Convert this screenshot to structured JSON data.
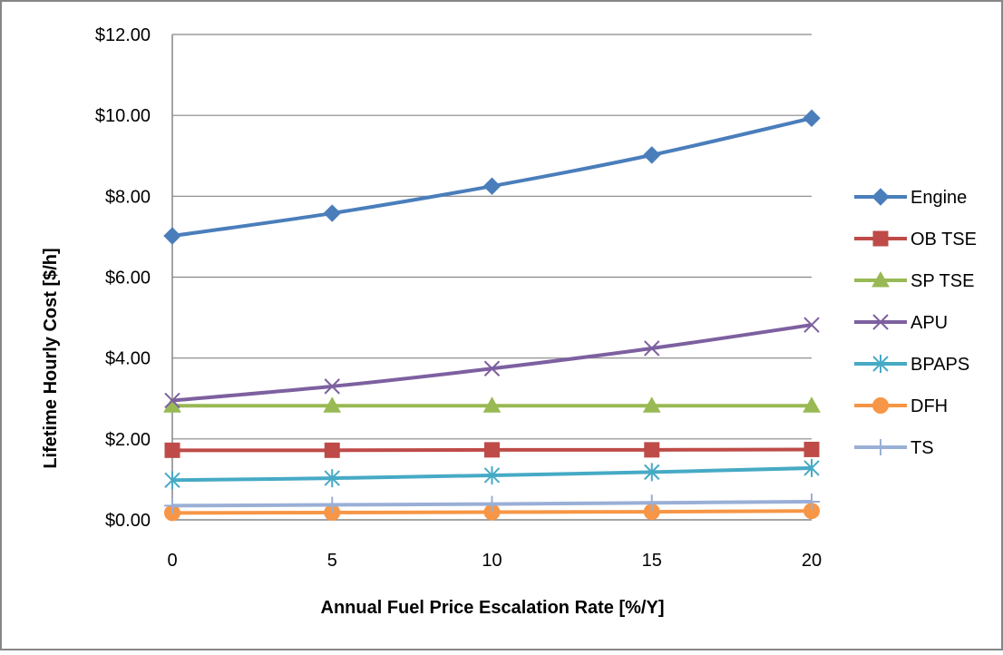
{
  "chart_data": {
    "type": "line",
    "title": "",
    "xlabel": "Annual Fuel Price Escalation Rate [%/Y]",
    "ylabel": "Lifetime Hourly Cost [$/h]",
    "x": [
      0,
      5,
      10,
      15,
      20
    ],
    "x_tick_labels": [
      "0",
      "5",
      "10",
      "15",
      "20"
    ],
    "ylim": [
      0,
      12
    ],
    "y_ticks": [
      0,
      2,
      4,
      6,
      8,
      10,
      12
    ],
    "y_tick_labels": [
      "$0.00",
      "$2.00",
      "$4.00",
      "$6.00",
      "$8.00",
      "$10.00",
      "$12.00"
    ],
    "grid": "horizontal",
    "legend_position": "right",
    "series": [
      {
        "name": "Engine",
        "values": [
          7.02,
          7.58,
          8.25,
          9.02,
          9.93
        ],
        "color": "#4a7ebb",
        "marker": "diamond"
      },
      {
        "name": "OB TSE",
        "values": [
          1.72,
          1.72,
          1.73,
          1.73,
          1.74
        ],
        "color": "#be4b48",
        "marker": "square"
      },
      {
        "name": "SP TSE",
        "values": [
          2.82,
          2.82,
          2.82,
          2.82,
          2.82
        ],
        "color": "#98b954",
        "marker": "triangle"
      },
      {
        "name": "APU",
        "values": [
          2.95,
          3.3,
          3.74,
          4.24,
          4.82
        ],
        "color": "#7d60a0",
        "marker": "x"
      },
      {
        "name": "BPAPS",
        "values": [
          0.98,
          1.03,
          1.1,
          1.18,
          1.28
        ],
        "color": "#46aac5",
        "marker": "asterisk"
      },
      {
        "name": "DFH",
        "values": [
          0.17,
          0.18,
          0.19,
          0.2,
          0.22
        ],
        "color": "#f79646",
        "marker": "circle"
      },
      {
        "name": "TS",
        "values": [
          0.35,
          0.37,
          0.39,
          0.42,
          0.45
        ],
        "color": "#9aafd6",
        "marker": "plus"
      }
    ]
  }
}
